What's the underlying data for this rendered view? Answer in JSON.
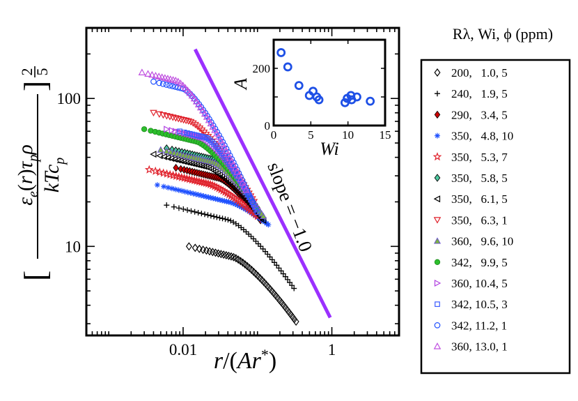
{
  "chart_data": {
    "type": "scatter",
    "x_scale": "log",
    "y_scale": "log",
    "xlabel": "r/(Ar*)",
    "ylabel": "[ εe(r)τpρ / kTcp ]^(2/5)",
    "x_ticks": [
      "0.01",
      "1"
    ],
    "y_ticks": [
      "10",
      "100"
    ],
    "xlim": [
      0.0005,
      8
    ],
    "ylim": [
      2.5,
      300
    ],
    "annotation": "slope = −1.0",
    "slope_line": {
      "x": [
        0.0145,
        0.95
      ],
      "y": [
        215,
        3.3
      ],
      "color": "#9B30FF"
    },
    "legend_title": "Rλ, Wi, ϕ (ppm)",
    "series": [
      {
        "name": "200,   1.0, 5",
        "marker": "diamond-open",
        "color": "#000000",
        "x0": 0.012,
        "y0": 10.0,
        "xb": 0.045,
        "xend": 0.33,
        "yend": 3.1
      },
      {
        "name": "240,   1.9, 5",
        "marker": "plus",
        "color": "#000000",
        "x0": 0.006,
        "y0": 19.0,
        "xb": 0.04,
        "xend": 0.31,
        "yend": 5.2
      },
      {
        "name": "290,   3.4, 5",
        "marker": "diamond-filled",
        "color": "#CC0000",
        "x0": 0.008,
        "y0": 34.0,
        "xb": 0.03,
        "xend": 0.11,
        "yend": 15.0
      },
      {
        "name": "350,   4.8, 10",
        "marker": "asterisk",
        "color": "#1E50FF",
        "x0": 0.0045,
        "y0": 26.0,
        "xb": 0.04,
        "xend": 0.14,
        "yend": 14.0
      },
      {
        "name": "350,   5.3, 7",
        "marker": "star-open",
        "color": "#E0202A",
        "x0": 0.0035,
        "y0": 33.0,
        "xb": 0.02,
        "xend": 0.1,
        "yend": 16.0
      },
      {
        "name": "350,   5.8, 5",
        "marker": "diamond-teal",
        "color": "#008B8B",
        "x0": 0.006,
        "y0": 46.0,
        "xb": 0.025,
        "xend": 0.11,
        "yend": 16.0
      },
      {
        "name": "350,   6.1, 5",
        "marker": "triangle-left",
        "color": "#000000",
        "x0": 0.004,
        "y0": 42.0,
        "xb": 0.02,
        "xend": 0.12,
        "yend": 15.0
      },
      {
        "name": "350,   6.3, 1",
        "marker": "triangle-down",
        "color": "#E0202A",
        "x0": 0.004,
        "y0": 80.0,
        "xb": 0.012,
        "xend": 0.09,
        "yend": 20.0
      },
      {
        "name": "360,   9.6, 10",
        "marker": "triangle-up-filled",
        "color": "#7CB342",
        "x0": 0.005,
        "y0": 45.0,
        "xb": 0.025,
        "xend": 0.12,
        "yend": 16.0
      },
      {
        "name": "342,   9.9, 5",
        "marker": "circle-filled",
        "color": "#2DBE2D",
        "x0": 0.003,
        "y0": 62.0,
        "xb": 0.015,
        "xend": 0.1,
        "yend": 18.0
      },
      {
        "name": "360, 10.4, 5",
        "marker": "triangle-right",
        "color": "#B040E0",
        "x0": 0.006,
        "y0": 62.0,
        "xb": 0.018,
        "xend": 0.1,
        "yend": 18.0
      },
      {
        "name": "342, 10.5, 3",
        "marker": "square-open",
        "color": "#3A5BFF",
        "x0": 0.009,
        "y0": 60.0,
        "xb": 0.02,
        "xend": 0.1,
        "yend": 17.0
      },
      {
        "name": "342, 11.2, 1",
        "marker": "circle-open",
        "color": "#2050FF",
        "x0": 0.004,
        "y0": 130.0,
        "xb": 0.01,
        "xend": 0.085,
        "yend": 20.0
      },
      {
        "name": "360, 13.0, 1",
        "marker": "triangle-up-open",
        "color": "#C050E0",
        "x0": 0.0028,
        "y0": 150.0,
        "xb": 0.008,
        "xend": 0.07,
        "yend": 24.0
      }
    ],
    "inset": {
      "type": "scatter",
      "xlabel": "Wi",
      "ylabel": "A",
      "xlim": [
        0,
        15
      ],
      "ylim": [
        0,
        300
      ],
      "x_ticks": [
        "0",
        "5",
        "10",
        "15"
      ],
      "y_ticks": [
        "0",
        "200"
      ],
      "color": "#1E50E6",
      "points": [
        [
          1.0,
          255
        ],
        [
          1.9,
          205
        ],
        [
          3.4,
          140
        ],
        [
          4.8,
          105
        ],
        [
          5.3,
          120
        ],
        [
          5.8,
          100
        ],
        [
          6.1,
          90
        ],
        [
          9.6,
          80
        ],
        [
          9.9,
          95
        ],
        [
          10.4,
          105
        ],
        [
          10.5,
          90
        ],
        [
          11.2,
          100
        ],
        [
          13.0,
          85
        ]
      ]
    }
  }
}
